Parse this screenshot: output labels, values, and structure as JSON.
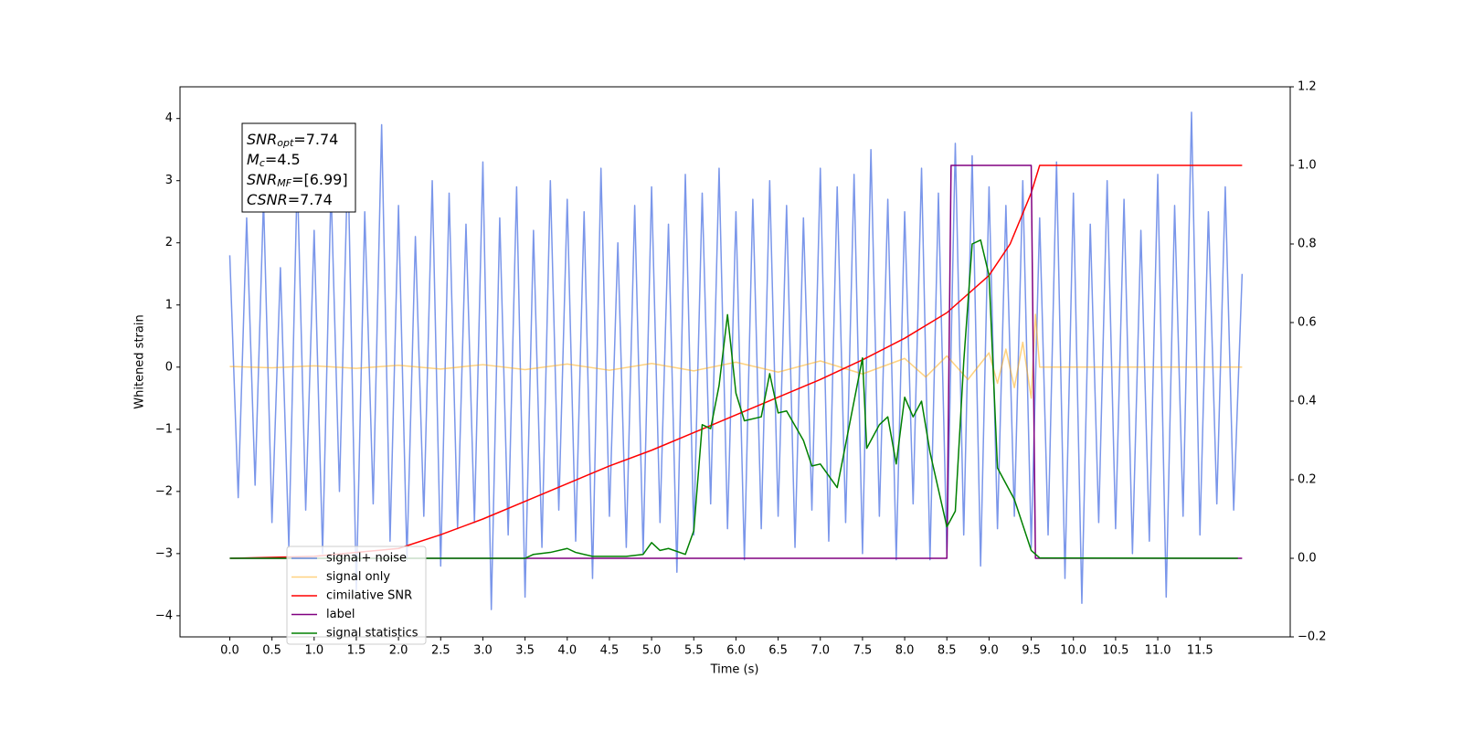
{
  "chart_data": {
    "type": "line",
    "xlabel": "Time (s)",
    "ylabel": "Whitened strain",
    "xlim": [
      -0.59,
      12.57
    ],
    "ylim": [
      -4.34,
      4.51
    ],
    "y2lim": [
      -0.2,
      1.2
    ],
    "xticks": [
      {
        "value": 0,
        "label": "0.0"
      },
      {
        "value": 0.5,
        "label": "0.5"
      },
      {
        "value": 1,
        "label": "1.0"
      },
      {
        "value": 1.5,
        "label": "1.5"
      },
      {
        "value": 2,
        "label": "2.0"
      },
      {
        "value": 2.5,
        "label": "2.5"
      },
      {
        "value": 3,
        "label": "3.0"
      },
      {
        "value": 3.5,
        "label": "3.5"
      },
      {
        "value": 4,
        "label": "4.0"
      },
      {
        "value": 4.5,
        "label": "4.5"
      },
      {
        "value": 5,
        "label": "5.0"
      },
      {
        "value": 5.5,
        "label": "5.5"
      },
      {
        "value": 6,
        "label": "6.0"
      },
      {
        "value": 6.5,
        "label": "6.5"
      },
      {
        "value": 7,
        "label": "7.0"
      },
      {
        "value": 7.5,
        "label": "7.5"
      },
      {
        "value": 8,
        "label": "8.0"
      },
      {
        "value": 8.5,
        "label": "8.5"
      },
      {
        "value": 9,
        "label": "9.0"
      },
      {
        "value": 9.5,
        "label": "9.5"
      },
      {
        "value": 10,
        "label": "10.0"
      },
      {
        "value": 10.5,
        "label": "10.5"
      },
      {
        "value": 11,
        "label": "11.0"
      },
      {
        "value": 11.5,
        "label": "11.5"
      }
    ],
    "yticks": [
      {
        "value": -4,
        "label": "−4"
      },
      {
        "value": -3,
        "label": "−3"
      },
      {
        "value": -2,
        "label": "−2"
      },
      {
        "value": -1,
        "label": "−1"
      },
      0,
      1,
      2,
      3,
      4
    ],
    "y2ticks": [
      {
        "value": -0.2,
        "label": "−0.2"
      },
      {
        "value": 0,
        "label": "0.0"
      },
      {
        "value": 0.2,
        "label": "0.2"
      },
      {
        "value": 0.4,
        "label": "0.4"
      },
      {
        "value": 0.6,
        "label": "0.6"
      },
      {
        "value": 0.8,
        "label": "0.8"
      },
      {
        "value": 1,
        "label": "1.0"
      },
      {
        "value": 1.2,
        "label": "1.2"
      }
    ],
    "legend": "lower left",
    "annotation": [
      {
        "base": "SNR",
        "sub": "opt",
        "rest": "=7.74"
      },
      {
        "base": "M",
        "sub": "c",
        "rest": "=4.5"
      },
      {
        "base": "SNR",
        "sub": "MF",
        "rest": "=[6.99]"
      },
      {
        "base": "CSNR",
        "rest": "=7.74"
      }
    ],
    "series": [
      {
        "name": "signal+ noise",
        "color": "#4169e1",
        "alpha": 0.7,
        "x": [
          0,
          0.1,
          0.2,
          0.3,
          0.4,
          0.5,
          0.6,
          0.7,
          0.8,
          0.9,
          1,
          1.1,
          1.2,
          1.3,
          1.4,
          1.5,
          1.6,
          1.7,
          1.8,
          1.9,
          2,
          2.1,
          2.2,
          2.3,
          2.4,
          2.5,
          2.6,
          2.7,
          2.8,
          2.9,
          3,
          3.1,
          3.2,
          3.3,
          3.4,
          3.5,
          3.6,
          3.7,
          3.8,
          3.9,
          4,
          4.1,
          4.2,
          4.3,
          4.4,
          4.5,
          4.6,
          4.7,
          4.8,
          4.9,
          5,
          5.1,
          5.2,
          5.3,
          5.4,
          5.5,
          5.6,
          5.7,
          5.8,
          5.9,
          6,
          6.1,
          6.2,
          6.3,
          6.4,
          6.5,
          6.6,
          6.7,
          6.8,
          6.9,
          7,
          7.1,
          7.2,
          7.3,
          7.4,
          7.5,
          7.6,
          7.7,
          7.8,
          7.9,
          8,
          8.1,
          8.2,
          8.3,
          8.4,
          8.5,
          8.6,
          8.7,
          8.8,
          8.9,
          9,
          9.1,
          9.2,
          9.3,
          9.4,
          9.5,
          9.6,
          9.7,
          9.8,
          9.9,
          10,
          10.1,
          10.2,
          10.3,
          10.4,
          10.5,
          10.6,
          10.7,
          10.8,
          10.9,
          11,
          11.1,
          11.2,
          11.3,
          11.4,
          11.5,
          11.6,
          11.7,
          11.8,
          11.9,
          12
        ],
        "values": [
          1.8,
          -2.1,
          2.4,
          -1.9,
          2.7,
          -2.5,
          1.6,
          -2.9,
          3.1,
          -2.3,
          2.2,
          -3.0,
          2.9,
          -2.0,
          3.4,
          -3.6,
          2.5,
          -2.2,
          3.9,
          -2.8,
          2.6,
          -3.1,
          2.1,
          -2.4,
          3.0,
          -3.2,
          2.8,
          -2.6,
          2.3,
          -2.5,
          3.3,
          -3.9,
          2.4,
          -2.7,
          2.9,
          -3.7,
          2.2,
          -2.9,
          3.0,
          -2.3,
          2.7,
          -2.8,
          2.5,
          -3.4,
          3.2,
          -2.4,
          2.0,
          -2.9,
          2.6,
          -3.0,
          2.9,
          -2.5,
          2.3,
          -3.3,
          3.1,
          -2.7,
          2.8,
          -2.2,
          3.2,
          -2.6,
          2.5,
          -3.1,
          2.7,
          -2.6,
          3.0,
          -2.4,
          2.6,
          -2.9,
          2.4,
          -2.3,
          3.2,
          -2.8,
          2.9,
          -2.5,
          3.1,
          -3.0,
          3.5,
          -2.4,
          2.7,
          -3.1,
          2.5,
          -2.2,
          3.2,
          -3.1,
          2.8,
          -3.0,
          3.6,
          -2.7,
          3.4,
          -3.2,
          2.9,
          -2.6,
          2.6,
          -2.4,
          3.0,
          -2.9,
          2.4,
          -2.7,
          3.3,
          -3.4,
          2.8,
          -3.8,
          2.3,
          -2.5,
          3.0,
          -2.6,
          2.7,
          -3.0,
          2.2,
          -2.8,
          3.1,
          -3.7,
          2.6,
          -2.4,
          4.1,
          -2.7,
          2.5,
          -2.2,
          2.9,
          -2.3,
          1.5
        ]
      },
      {
        "name": "signal only",
        "color": "#ffa500",
        "alpha": 0.5,
        "x": [
          0,
          0.5,
          1,
          1.5,
          2,
          2.5,
          3,
          3.5,
          4,
          4.5,
          5,
          5.5,
          6,
          6.5,
          7,
          7.5,
          8,
          8.25,
          8.5,
          8.75,
          9,
          9.1,
          9.2,
          9.3,
          9.4,
          9.5,
          9.55,
          9.6,
          12
        ],
        "values": [
          0.01,
          -0.01,
          0.02,
          -0.02,
          0.03,
          -0.03,
          0.04,
          -0.04,
          0.05,
          -0.05,
          0.06,
          -0.06,
          0.08,
          -0.08,
          0.1,
          -0.11,
          0.14,
          -0.16,
          0.18,
          -0.2,
          0.23,
          -0.26,
          0.29,
          -0.33,
          0.4,
          -0.5,
          0.85,
          0,
          0
        ]
      },
      {
        "name": "cimilative SNR",
        "color": "#ff0000",
        "alpha": 1,
        "axis": "y2",
        "x": [
          0,
          1,
          2,
          2.5,
          3,
          3.5,
          4,
          4.5,
          5,
          5.5,
          6,
          6.5,
          7,
          7.5,
          8,
          8.5,
          9,
          9.25,
          9.5,
          9.6,
          12
        ],
        "values": [
          0,
          0.005,
          0.025,
          0.06,
          0.1,
          0.145,
          0.19,
          0.235,
          0.275,
          0.32,
          0.365,
          0.41,
          0.455,
          0.505,
          0.56,
          0.625,
          0.72,
          0.8,
          0.93,
          1.0,
          1.0
        ]
      },
      {
        "name": "label",
        "color": "#800080",
        "alpha": 1,
        "axis": "y2",
        "x": [
          0,
          8.5,
          8.55,
          9.5,
          9.55,
          12
        ],
        "values": [
          0,
          0,
          1,
          1,
          0,
          0
        ]
      },
      {
        "name": "signal statistics",
        "color": "#008000",
        "alpha": 1,
        "axis": "y2",
        "x": [
          0,
          3.5,
          3.6,
          3.8,
          4.0,
          4.1,
          4.3,
          4.7,
          4.9,
          5.0,
          5.1,
          5.2,
          5.4,
          5.5,
          5.6,
          5.7,
          5.8,
          5.9,
          6.0,
          6.1,
          6.3,
          6.4,
          6.5,
          6.6,
          6.8,
          6.9,
          7.0,
          7.2,
          7.3,
          7.5,
          7.55,
          7.6,
          7.7,
          7.8,
          7.9,
          8.0,
          8.1,
          8.2,
          8.3,
          8.5,
          8.6,
          8.7,
          8.8,
          8.9,
          9.0,
          9.1,
          9.3,
          9.5,
          9.6,
          11.95
        ],
        "values": [
          0,
          0,
          0.01,
          0.015,
          0.025,
          0.015,
          0.005,
          0.005,
          0.01,
          0.04,
          0.02,
          0.025,
          0.01,
          0.07,
          0.34,
          0.33,
          0.44,
          0.62,
          0.42,
          0.35,
          0.36,
          0.47,
          0.37,
          0.375,
          0.3,
          0.235,
          0.24,
          0.18,
          0.29,
          0.51,
          0.28,
          0.3,
          0.34,
          0.36,
          0.24,
          0.41,
          0.36,
          0.4,
          0.27,
          0.08,
          0.12,
          0.5,
          0.8,
          0.81,
          0.72,
          0.23,
          0.15,
          0.02,
          0.001,
          0
        ]
      }
    ]
  }
}
